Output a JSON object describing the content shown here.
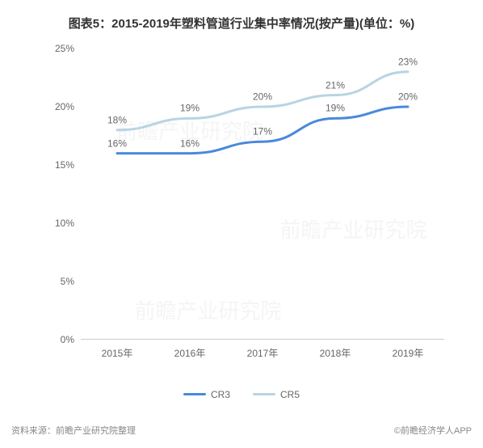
{
  "title": "图表5：2015-2019年塑料管道行业集中率情况(按产量)(单位：%)",
  "chart": {
    "type": "line",
    "background_color": "#ffffff",
    "grid_color": "#cccccc",
    "text_color": "#666666",
    "label_fontsize": 12,
    "title_fontsize": 15,
    "ylim": [
      0,
      25
    ],
    "ytick_step": 5,
    "yticks": [
      {
        "v": 0,
        "label": "0%"
      },
      {
        "v": 5,
        "label": "5%"
      },
      {
        "v": 10,
        "label": "10%"
      },
      {
        "v": 15,
        "label": "15%"
      },
      {
        "v": 20,
        "label": "20%"
      },
      {
        "v": 25,
        "label": "25%"
      }
    ],
    "categories": [
      "2015年",
      "2016年",
      "2017年",
      "2018年",
      "2019年"
    ],
    "series": [
      {
        "name": "CR3",
        "color": "#4a89dc",
        "line_width": 3,
        "values": [
          16,
          16,
          17,
          19,
          20
        ],
        "labels": [
          "16%",
          "16%",
          "17%",
          "19%",
          "20%"
        ]
      },
      {
        "name": "CR5",
        "color": "#b8d4e3",
        "line_width": 3,
        "values": [
          18,
          19,
          20,
          21,
          23
        ],
        "labels": [
          "18%",
          "19%",
          "20%",
          "21%",
          "23%"
        ]
      }
    ]
  },
  "footer": {
    "source_label": "资料来源：前瞻产业研究院整理",
    "brand_label": "前瞻经济学人APP"
  },
  "watermark_text": "前瞻产业研究院"
}
